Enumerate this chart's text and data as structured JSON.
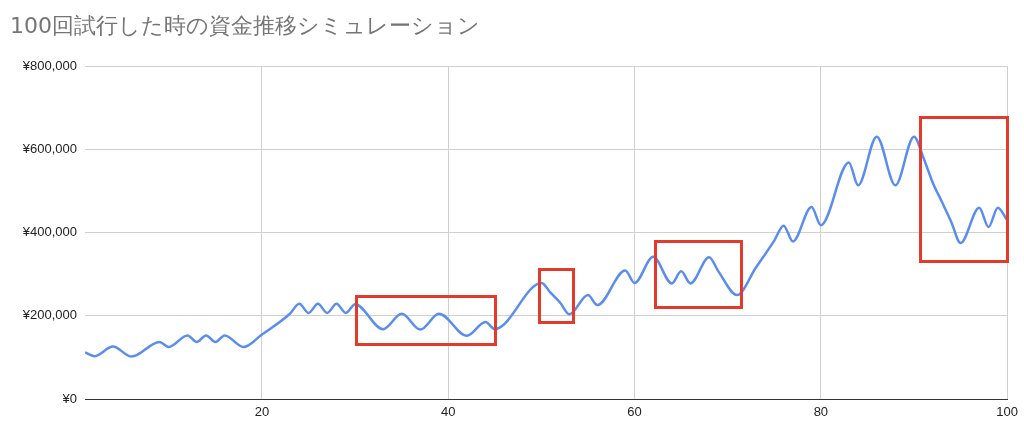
{
  "chart_data": {
    "type": "line",
    "title": "100回試行した時の資金推移シミュレーション",
    "x": [
      1,
      2,
      4,
      6,
      9,
      10,
      12,
      13,
      14,
      15,
      16,
      18,
      20,
      23,
      24,
      25,
      26,
      27,
      28,
      29,
      30,
      33,
      35,
      37,
      39,
      42,
      44,
      45,
      50,
      51,
      52,
      53,
      55,
      56,
      59,
      60,
      62,
      64,
      65,
      66,
      68,
      69,
      71,
      73,
      75,
      76,
      77,
      79,
      80,
      83,
      84,
      86,
      88,
      90,
      91,
      92,
      93,
      94,
      95,
      97,
      98,
      99,
      100
    ],
    "series": [
      {
        "color": "#5b8def",
        "values": [
          112000,
          103000,
          126000,
          102000,
          137000,
          125000,
          153000,
          137000,
          153000,
          137000,
          153000,
          125000,
          155000,
          205000,
          229000,
          207000,
          229000,
          207000,
          229000,
          207000,
          228000,
          168000,
          205000,
          167000,
          205000,
          152000,
          185000,
          168000,
          279000,
          255000,
          232000,
          204000,
          250000,
          226000,
          309000,
          279000,
          342000,
          278000,
          307000,
          278000,
          341000,
          307000,
          250000,
          315000,
          381000,
          417000,
          379000,
          462000,
          418000,
          569000,
          514000,
          631000,
          514000,
          631000,
          581000,
          521000,
          474000,
          426000,
          375000,
          460000,
          414000,
          460000,
          430000
        ]
      }
    ],
    "xlim": [
      1,
      100
    ],
    "xticks": [
      20,
      40,
      60,
      80,
      100
    ],
    "ylim": [
      0,
      800000
    ],
    "yticks": [
      {
        "value": 0,
        "label": "¥0"
      },
      {
        "value": 200000,
        "label": "¥200,000"
      },
      {
        "value": 400000,
        "label": "¥400,000"
      },
      {
        "value": 600000,
        "label": "¥600,000"
      },
      {
        "value": 800000,
        "label": "¥800,000"
      }
    ],
    "grid": true,
    "legend": false,
    "marker": "none",
    "line_style": "solid"
  }
}
